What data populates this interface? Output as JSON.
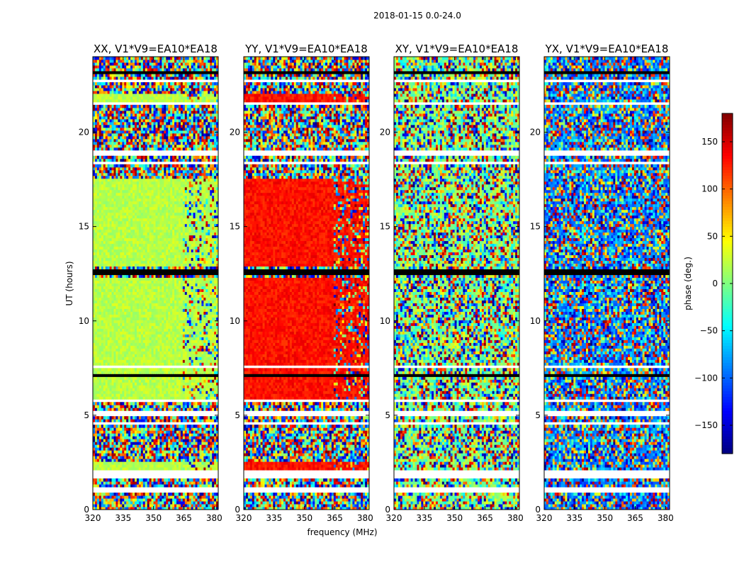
{
  "figure": {
    "suptitle": "2018-01-15 0.0-24.0"
  },
  "chart_data": {
    "type": "heatmap",
    "xlabel": "frequency (MHz)",
    "ylabel": "UT (hours)",
    "xlim": [
      320,
      382
    ],
    "ylim": [
      0,
      24
    ],
    "xticks": [
      320,
      335,
      350,
      365,
      380
    ],
    "yticks": [
      0,
      5,
      10,
      15,
      20
    ],
    "panels": [
      {
        "title": "XX, V1*V9=EA10*EA18",
        "mode": "coherent",
        "base_phase": 20
      },
      {
        "title": "YY, V1*V9=EA10*EA18",
        "mode": "coherent",
        "base_phase": 130
      },
      {
        "title": "XY, V1*V9=EA10*EA18",
        "mode": "noise",
        "base_phase": 0
      },
      {
        "title": "YX, V1*V9=EA10*EA18",
        "mode": "noise",
        "base_phase": -90
      }
    ],
    "flagged_time_ranges_hours": [
      [
        0.95,
        1.15
      ],
      [
        1.7,
        2.15
      ],
      [
        4.5,
        4.7
      ],
      [
        5.0,
        5.2
      ],
      [
        5.65,
        5.85
      ],
      [
        7.5,
        7.6
      ],
      [
        18.35,
        18.5
      ],
      [
        18.8,
        19.0
      ],
      [
        21.45,
        21.6
      ],
      [
        22.6,
        22.75
      ]
    ],
    "black_time_ranges_hours": [
      [
        2.5,
        2.6
      ],
      [
        7.05,
        7.2
      ],
      [
        7.28,
        7.38
      ],
      [
        12.4,
        12.82
      ],
      [
        10.9,
        10.95
      ],
      [
        23.1,
        23.18
      ]
    ],
    "rfi_frequency_range_mhz": [
      364,
      382
    ],
    "colorbar": {
      "label": "phase (deg.)",
      "min": -180,
      "max": 180,
      "ticks": [
        150,
        100,
        50,
        0,
        -50,
        -100,
        -150
      ],
      "tick_labels": [
        "150",
        "100",
        "50",
        "0",
        "−50",
        "−100",
        "−150"
      ]
    }
  }
}
